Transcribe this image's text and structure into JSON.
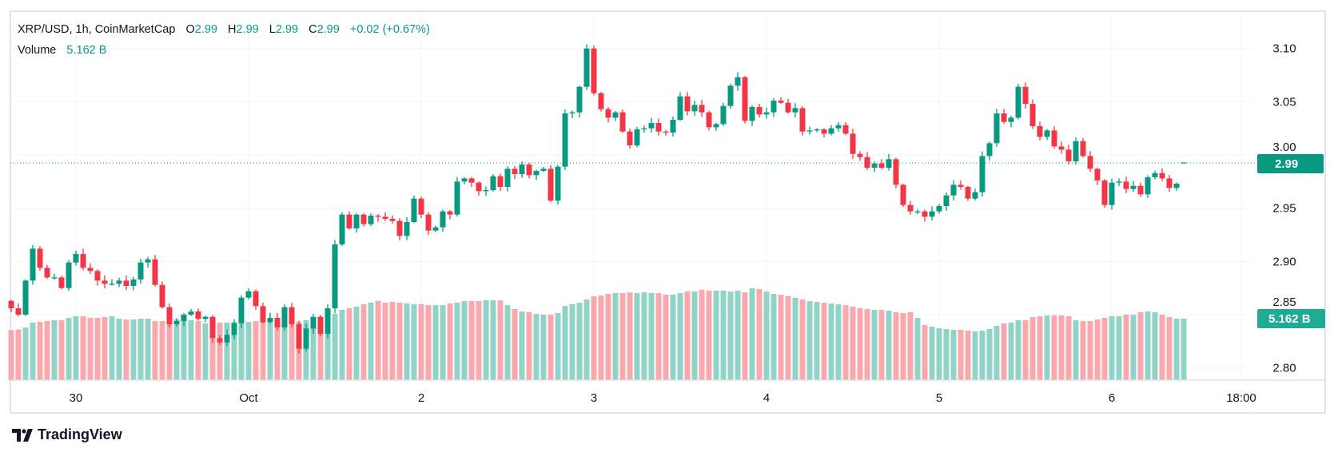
{
  "legend": {
    "symbol": "XRP/USD, 1h, CoinMarketCap",
    "open_label": "O",
    "open": "2.99",
    "high_label": "H",
    "high": "2.99",
    "low_label": "L",
    "low": "2.99",
    "close_label": "C",
    "close": "2.99",
    "change": "+0.02 (+0.67%)",
    "volume_label": "Volume",
    "volume_value": "5.162 B"
  },
  "price_tag": "2.99",
  "volume_tag": "5.162 B",
  "branding": {
    "name": "TradingView",
    "icon": "tradingview-logo-icon"
  },
  "colors": {
    "up": "#089981",
    "down": "#F23645",
    "volume_up": "#92d3c8",
    "volume_down": "#f9a9ae",
    "price_tag": "#089981",
    "volume_tag": "#22ab94"
  },
  "chart_data": {
    "type": "candlestick",
    "interval": "1h",
    "title": "XRP/USD, 1h, CoinMarketCap",
    "ylim": [
      2.775,
      3.135
    ],
    "y_ticks": [
      "3.10",
      "3.05",
      "3.00",
      "2.95",
      "2.90",
      "2.85",
      "2.80"
    ],
    "y_tick_values": [
      3.1,
      3.05,
      3.0,
      2.95,
      2.9,
      2.85,
      2.8
    ],
    "x_ticks": [
      {
        "label": "30",
        "candle_index": 9
      },
      {
        "label": "Oct",
        "candle_index": 33
      },
      {
        "label": "2",
        "candle_index": 57
      },
      {
        "label": "3",
        "candle_index": 81
      },
      {
        "label": "4",
        "candle_index": 105
      },
      {
        "label": "5",
        "candle_index": 129
      },
      {
        "label": "6",
        "candle_index": 153
      },
      {
        "label": "18:00",
        "candle_index": 171
      }
    ],
    "first_open": 2.863,
    "closes": [
      2.856,
      2.85,
      2.882,
      2.912,
      2.894,
      2.885,
      2.885,
      2.875,
      2.899,
      2.907,
      2.894,
      2.891,
      2.882,
      2.879,
      2.879,
      2.882,
      2.877,
      2.883,
      2.899,
      2.902,
      2.878,
      2.857,
      2.841,
      2.844,
      2.85,
      2.853,
      2.846,
      2.848,
      2.828,
      2.824,
      2.831,
      2.842,
      2.866,
      2.872,
      2.858,
      2.843,
      2.847,
      2.838,
      2.857,
      2.841,
      2.818,
      2.837,
      2.848,
      2.832,
      2.856,
      2.916,
      2.944,
      2.931,
      2.944,
      2.935,
      2.943,
      2.942,
      2.94,
      2.938,
      2.924,
      2.937,
      2.959,
      2.944,
      2.929,
      2.932,
      2.947,
      2.944,
      2.975,
      2.978,
      2.974,
      2.966,
      2.967,
      2.98,
      2.97,
      2.987,
      2.982,
      2.991,
      2.981,
      2.985,
      2.987,
      2.957,
      2.989,
      3.039,
      3.04,
      3.064,
      3.1,
      3.058,
      3.043,
      3.035,
      3.04,
      3.022,
      3.009,
      3.024,
      3.025,
      3.03,
      3.022,
      3.021,
      3.033,
      3.055,
      3.041,
      3.047,
      3.04,
      3.026,
      3.029,
      3.046,
      3.065,
      3.073,
      3.032,
      3.045,
      3.038,
      3.04,
      3.051,
      3.049,
      3.04,
      3.044,
      3.022,
      3.023,
      3.024,
      3.02,
      3.025,
      3.028,
      3.02,
      3.001,
      2.998,
      2.988,
      2.992,
      2.988,
      2.996,
      2.972,
      2.953,
      2.947,
      2.947,
      2.942,
      2.947,
      2.952,
      2.962,
      2.972,
      2.97,
      2.959,
      2.965,
      2.999,
      3.011,
      3.039,
      3.031,
      3.035,
      3.064,
      3.048,
      3.027,
      3.017,
      3.023,
      3.008,
      3.005,
      2.994,
      3.013,
      2.999,
      2.987,
      2.976,
      2.953,
      2.974,
      2.975,
      2.968,
      2.971,
      2.963,
      2.979,
      2.983,
      2.978,
      2.969,
      2.973
    ],
    "last_candle": {
      "open": 2.993,
      "high": 2.993,
      "low": 2.993,
      "close": 2.993
    },
    "current_price": 2.9925,
    "volume_unit": "B",
    "volumes": [
      4.2,
      4.25,
      4.42,
      4.83,
      4.89,
      4.96,
      5.03,
      5.03,
      5.23,
      5.36,
      5.36,
      5.23,
      5.23,
      5.3,
      5.36,
      5.16,
      5.1,
      5.1,
      5.16,
      5.16,
      4.96,
      4.96,
      4.96,
      5.1,
      5.1,
      5.03,
      4.96,
      4.76,
      4.83,
      4.83,
      4.83,
      4.89,
      4.96,
      4.89,
      4.96,
      4.96,
      4.96,
      4.96,
      4.96,
      4.96,
      4.89,
      5.03,
      5.03,
      5.1,
      5.16,
      5.56,
      5.9,
      6.03,
      6.17,
      6.37,
      6.5,
      6.64,
      6.5,
      6.57,
      6.5,
      6.44,
      6.37,
      6.37,
      6.3,
      6.3,
      6.3,
      6.44,
      6.5,
      6.64,
      6.64,
      6.64,
      6.7,
      6.7,
      6.7,
      6.3,
      5.97,
      5.77,
      5.7,
      5.56,
      5.5,
      5.5,
      5.63,
      6.23,
      6.37,
      6.5,
      6.77,
      7.04,
      7.11,
      7.24,
      7.31,
      7.31,
      7.37,
      7.31,
      7.37,
      7.31,
      7.31,
      7.17,
      7.17,
      7.31,
      7.44,
      7.44,
      7.58,
      7.51,
      7.51,
      7.51,
      7.44,
      7.51,
      7.37,
      7.71,
      7.64,
      7.44,
      7.24,
      7.17,
      7.04,
      6.91,
      6.77,
      6.64,
      6.57,
      6.5,
      6.44,
      6.37,
      6.3,
      6.17,
      6.03,
      5.97,
      5.9,
      5.9,
      5.83,
      5.7,
      5.63,
      5.7,
      5.23,
      4.63,
      4.49,
      4.36,
      4.29,
      4.22,
      4.22,
      4.16,
      4.09,
      4.16,
      4.29,
      4.56,
      4.76,
      4.83,
      5.03,
      5.03,
      5.3,
      5.36,
      5.43,
      5.43,
      5.43,
      5.36,
      5.03,
      4.96,
      4.96,
      5.1,
      5.23,
      5.36,
      5.36,
      5.5,
      5.5,
      5.7,
      5.77,
      5.7,
      5.5,
      5.3,
      5.16,
      5.162
    ]
  }
}
